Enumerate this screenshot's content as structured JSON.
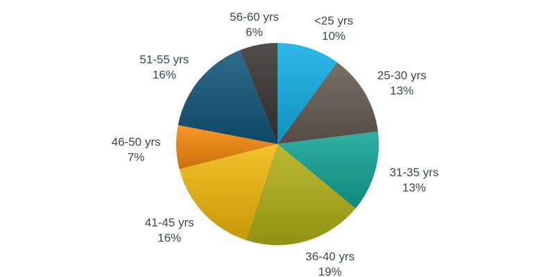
{
  "chart_data": {
    "type": "pie",
    "start_angle_deg": 90,
    "direction": "clockwise",
    "legend": "none",
    "slices": [
      {
        "label": "<25 yrs",
        "value": 10,
        "value_label": "10%",
        "color": "#13b0e6"
      },
      {
        "label": "25-30 yrs",
        "value": 13,
        "value_label": "13%",
        "color": "#675c53"
      },
      {
        "label": "31-35 yrs",
        "value": 13,
        "value_label": "13%",
        "color": "#14a596"
      },
      {
        "label": "36-40 yrs",
        "value": 19,
        "value_label": "19%",
        "color": "#b3b117"
      },
      {
        "label": "41-45 yrs",
        "value": 16,
        "value_label": "16%",
        "color": "#f2b90c"
      },
      {
        "label": "46-50 yrs",
        "value": 7,
        "value_label": "7%",
        "color": "#f7890c"
      },
      {
        "label": "51-55 yrs",
        "value": 16,
        "value_label": "16%",
        "color": "#12577a"
      },
      {
        "label": "56-60 yrs",
        "value": 6,
        "value_label": "6%",
        "color": "#3a3432"
      }
    ]
  }
}
